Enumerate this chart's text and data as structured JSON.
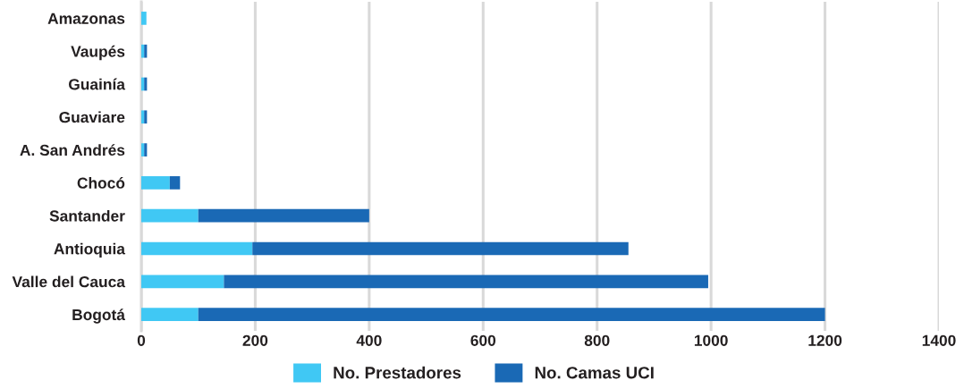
{
  "chart_data": {
    "type": "bar",
    "orientation": "horizontal",
    "stacked": true,
    "categories": [
      "Amazonas",
      "Vaupés",
      "Guainía",
      "Guaviare",
      "A. San Andrés",
      "Chocó",
      "Santander",
      "Antioquia",
      "Valle del Cauca",
      "Bogotá"
    ],
    "series": [
      {
        "name": "No. Prestadores",
        "color": "#40c8f4",
        "values": [
          9,
          5,
          5,
          5,
          5,
          50,
          100,
          195,
          145,
          100
        ]
      },
      {
        "name": "No. Camas UCI",
        "color": "#1a69b5",
        "values": [
          0,
          5,
          5,
          5,
          5,
          18,
          300,
          660,
          850,
          1100
        ]
      }
    ],
    "xlim": [
      0,
      1400
    ],
    "xticks": [
      0,
      200,
      400,
      600,
      800,
      1000,
      1200,
      1400
    ],
    "grid": "x",
    "legend": "bottom"
  }
}
